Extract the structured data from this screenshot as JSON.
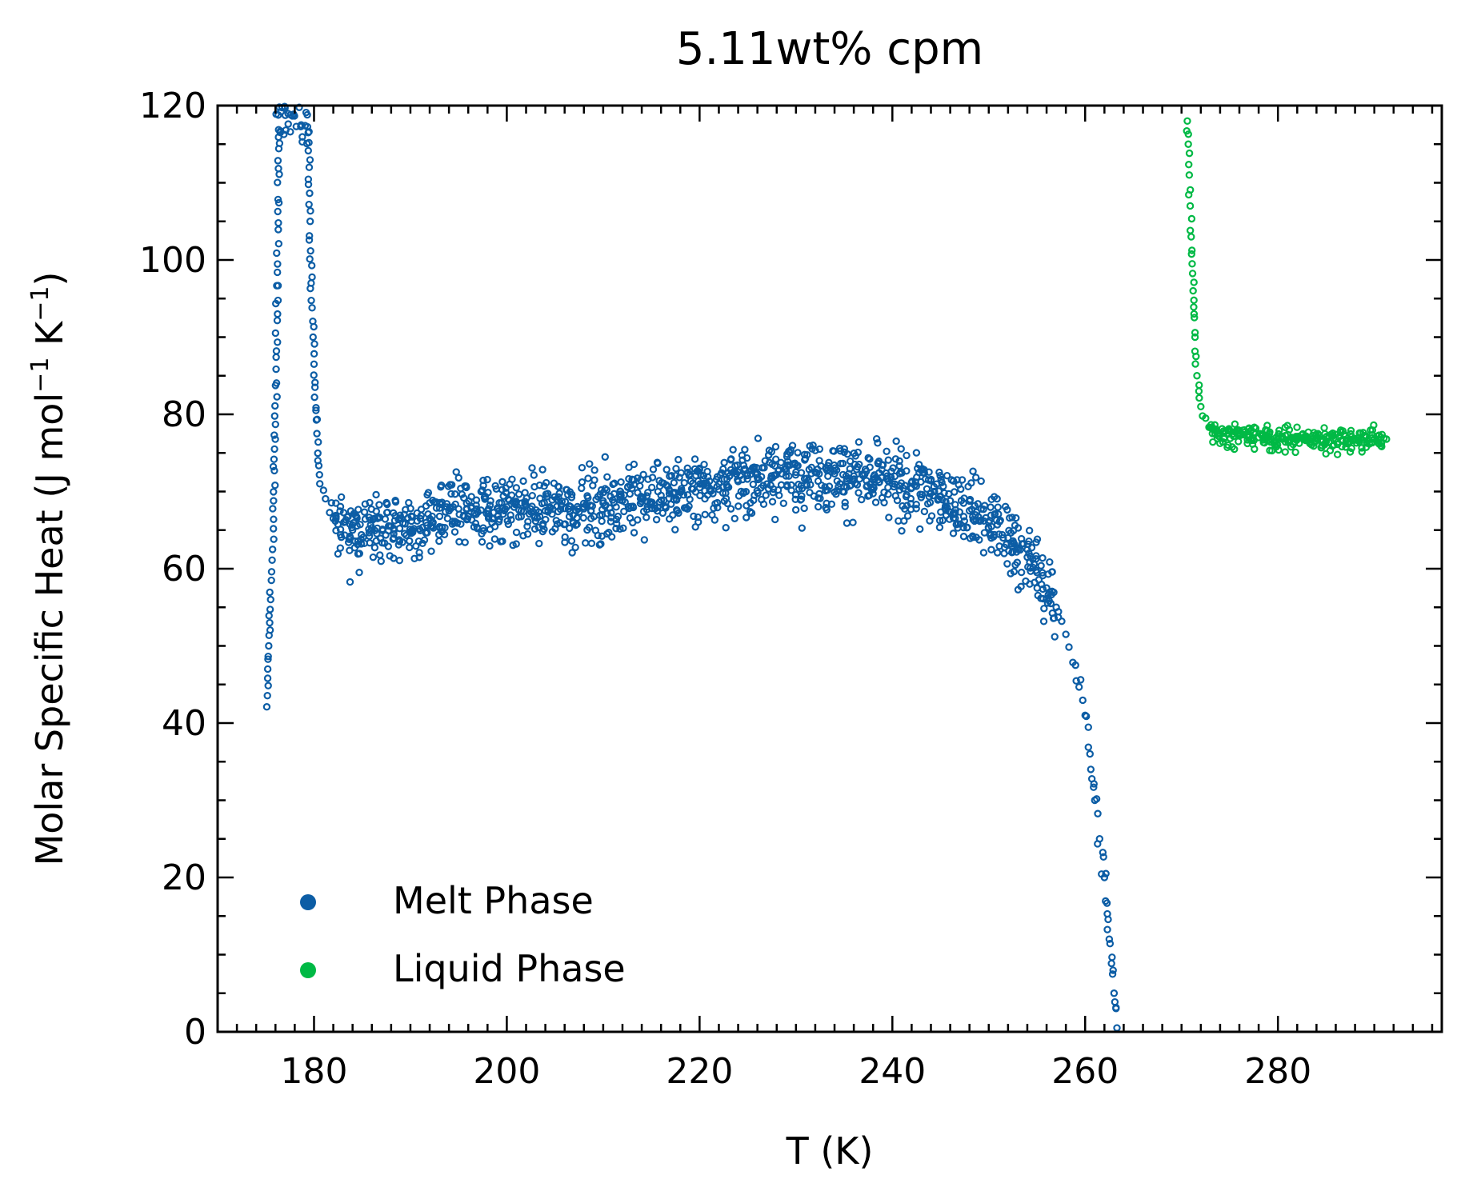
{
  "chart_data": {
    "type": "scatter",
    "title": "5.11wt% cpm",
    "xlabel": "T (K)",
    "ylabel": {
      "prefix": "Molar Specific Heat (J mol",
      "mid": " K",
      "suffix": ")",
      "exponent": "−1"
    },
    "xlim": [
      170,
      297
    ],
    "ylim": [
      0,
      120
    ],
    "xticks": [
      180,
      200,
      220,
      240,
      260,
      280
    ],
    "yticks": [
      0,
      20,
      40,
      60,
      80,
      100,
      120
    ],
    "x_minor_step": 2,
    "y_minor_step": 5,
    "ticks_direction": "in",
    "grid": false,
    "legend_position": "lower-left",
    "series": [
      {
        "name": "Melt Phase",
        "color": "#0C5DA5",
        "marker": "open-circle",
        "points": [
          [
            175.1,
            42.1
          ],
          [
            175.2,
            47
          ],
          [
            175.3,
            50
          ],
          [
            175.4,
            53
          ],
          [
            175.5,
            56
          ],
          [
            175.6,
            59.6
          ],
          [
            175.7,
            62.5
          ],
          [
            175.8,
            68.8
          ],
          [
            175.9,
            75.5
          ],
          [
            176.0,
            78.7
          ],
          [
            176.1,
            88.2
          ],
          [
            176.2,
            98.4
          ],
          [
            176.3,
            104.8
          ],
          [
            176.4,
            119.8
          ],
          [
            179.3,
            118.8
          ],
          [
            179.4,
            116.5
          ],
          [
            179.5,
            112
          ],
          [
            179.6,
            105
          ],
          [
            179.7,
            97
          ],
          [
            179.8,
            93.8
          ],
          [
            179.9,
            90
          ],
          [
            180.0,
            86.5
          ],
          [
            180.1,
            83.5
          ],
          [
            180.2,
            80.5
          ],
          [
            180.3,
            77.5
          ],
          [
            180.4,
            74
          ],
          [
            180.6,
            71
          ],
          [
            182,
            66.5
          ],
          [
            184,
            65
          ],
          [
            186,
            65.3
          ],
          [
            188,
            65.5
          ],
          [
            190,
            64.8
          ],
          [
            192,
            66.5
          ],
          [
            194,
            67.5
          ],
          [
            196,
            66.8
          ],
          [
            198,
            67.5
          ],
          [
            200,
            68
          ],
          [
            202,
            68.2
          ],
          [
            204,
            67.5
          ],
          [
            206,
            67.8
          ],
          [
            208,
            68
          ],
          [
            210,
            68.5
          ],
          [
            212,
            68.8
          ],
          [
            214,
            69
          ],
          [
            216,
            69.5
          ],
          [
            218,
            70
          ],
          [
            220,
            70.5
          ],
          [
            222,
            71
          ],
          [
            224,
            71.3
          ],
          [
            226,
            71.8
          ],
          [
            228,
            72.2
          ],
          [
            230,
            72.5
          ],
          [
            232,
            72.5
          ],
          [
            234,
            72.3
          ],
          [
            236,
            72
          ],
          [
            238,
            71.5
          ],
          [
            240,
            71
          ],
          [
            242,
            70.5
          ],
          [
            244,
            69.8
          ],
          [
            246,
            68.8
          ],
          [
            248,
            67.5
          ],
          [
            250,
            66
          ],
          [
            252,
            64
          ],
          [
            254,
            61.5
          ],
          [
            255,
            59.5
          ],
          [
            256,
            57.5
          ],
          [
            257,
            55
          ],
          [
            258,
            51.5
          ],
          [
            259,
            47.5
          ],
          [
            260,
            41
          ],
          [
            260.5,
            36
          ],
          [
            261,
            30
          ],
          [
            261.5,
            25
          ],
          [
            262,
            20
          ],
          [
            262.5,
            12
          ],
          [
            263,
            5
          ],
          [
            263.3,
            0.5
          ]
        ]
      },
      {
        "name": "Liquid Phase",
        "color": "#00B945",
        "marker": "open-circle",
        "points": [
          [
            270.6,
            118
          ],
          [
            270.7,
            115
          ],
          [
            270.8,
            111
          ],
          [
            270.9,
            107
          ],
          [
            271.0,
            103
          ],
          [
            271.1,
            99.5
          ],
          [
            271.2,
            96
          ],
          [
            271.3,
            93
          ],
          [
            271.4,
            90
          ],
          [
            271.5,
            87.5
          ],
          [
            271.6,
            85
          ],
          [
            271.8,
            83
          ],
          [
            272,
            81
          ],
          [
            272.5,
            79.5
          ],
          [
            273,
            78.3
          ],
          [
            274,
            77.5
          ],
          [
            276,
            77.2
          ],
          [
            278,
            77
          ],
          [
            280,
            76.9
          ],
          [
            282,
            76.8
          ],
          [
            284,
            76.8
          ],
          [
            286,
            76.8
          ],
          [
            288,
            76.8
          ],
          [
            290,
            76.8
          ],
          [
            291,
            76.9
          ]
        ]
      }
    ]
  }
}
